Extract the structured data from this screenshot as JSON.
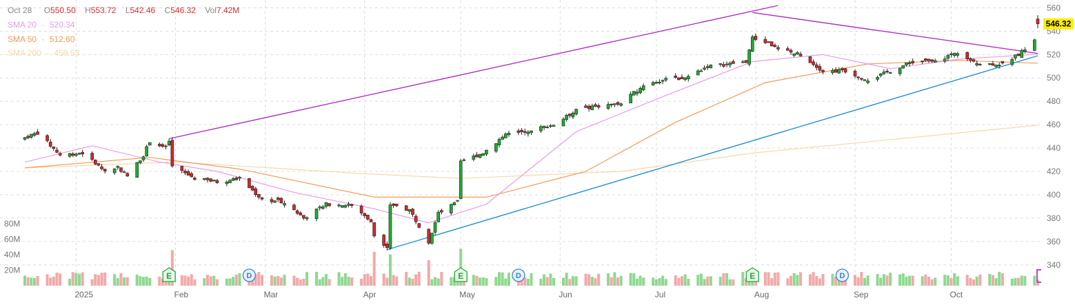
{
  "ohlc_header": {
    "date": "Oct 28",
    "open_label": "O",
    "open": "550.50",
    "high_label": "H",
    "high": "553.72",
    "low_label": "L",
    "low": "542.46",
    "close_label": "C",
    "close": "546.32",
    "vol_label": "Vol",
    "vol": "7.42M"
  },
  "sma_legend": [
    {
      "label": "SMA 20",
      "sep": "·",
      "value": "520.34",
      "color": "#e79be8"
    },
    {
      "label": "SMA 50",
      "sep": "·",
      "value": "512.60",
      "color": "#f29a55"
    },
    {
      "label": "SMA 200",
      "sep": "·",
      "value": "459.53",
      "color": "#f5d9a8"
    }
  ],
  "last_price_tag": "546.32",
  "colors": {
    "up": "#1fab2f",
    "down": "#d6262a",
    "vol_up": "#8fd98f",
    "vol_down": "#f3a9a9",
    "trend_upper": "#b02fc4",
    "trend_lower": "#1e8fd4",
    "grid": "#dcdcdc",
    "axis_text": "#777777",
    "tag_bg": "#ffee00"
  },
  "chart_data": {
    "type": "candlestick",
    "x_axis_labels": [
      "2025",
      "Feb",
      "Mar",
      "Apr",
      "May",
      "Jun",
      "Jul",
      "Aug",
      "Sep",
      "Oct"
    ],
    "y_ticks": [
      340,
      360,
      380,
      400,
      420,
      440,
      460,
      480,
      500,
      520,
      540,
      560
    ],
    "ylim": [
      334,
      562
    ],
    "volume_ticks": [
      "20M",
      "40M",
      "60M",
      "80M"
    ],
    "volume_max_M": 85,
    "anchors": [
      {
        "d": "2024-12-16",
        "c": 449
      },
      {
        "d": "2024-12-20",
        "c": 453
      },
      {
        "d": "2024-12-27",
        "c": 434
      },
      {
        "d": "2025-01-03",
        "c": 436
      },
      {
        "d": "2025-01-10",
        "c": 420
      },
      {
        "d": "2025-01-14",
        "c": 424
      },
      {
        "d": "2025-01-17",
        "c": 416
      },
      {
        "d": "2025-01-22",
        "c": 434
      },
      {
        "d": "2025-01-24",
        "c": 446
      },
      {
        "d": "2025-01-29",
        "c": 440
      },
      {
        "d": "2025-01-30",
        "c": 446
      },
      {
        "d": "2025-01-31",
        "c": 424
      },
      {
        "d": "2025-02-07",
        "c": 414
      },
      {
        "d": "2025-02-14",
        "c": 411
      },
      {
        "d": "2025-02-21",
        "c": 414
      },
      {
        "d": "2025-02-28",
        "c": 396
      },
      {
        "d": "2025-03-07",
        "c": 394
      },
      {
        "d": "2025-03-13",
        "c": 380
      },
      {
        "d": "2025-03-20",
        "c": 392
      },
      {
        "d": "2025-03-27",
        "c": 392
      },
      {
        "d": "2025-04-03",
        "c": 378
      },
      {
        "d": "2025-04-04",
        "c": 364
      },
      {
        "d": "2025-04-08",
        "c": 356
      },
      {
        "d": "2025-04-09",
        "c": 392
      },
      {
        "d": "2025-04-15",
        "c": 387
      },
      {
        "d": "2025-04-21",
        "c": 360
      },
      {
        "d": "2025-04-24",
        "c": 384
      },
      {
        "d": "2025-04-30",
        "c": 394
      },
      {
        "d": "2025-05-01",
        "c": 428
      },
      {
        "d": "2025-05-08",
        "c": 436
      },
      {
        "d": "2025-05-15",
        "c": 452
      },
      {
        "d": "2025-05-22",
        "c": 455
      },
      {
        "d": "2025-05-30",
        "c": 460
      },
      {
        "d": "2025-06-06",
        "c": 472
      },
      {
        "d": "2025-06-13",
        "c": 476
      },
      {
        "d": "2025-06-20",
        "c": 478
      },
      {
        "d": "2025-06-27",
        "c": 494
      },
      {
        "d": "2025-07-03",
        "c": 498
      },
      {
        "d": "2025-07-10",
        "c": 500
      },
      {
        "d": "2025-07-17",
        "c": 510
      },
      {
        "d": "2025-07-24",
        "c": 512
      },
      {
        "d": "2025-07-29",
        "c": 514
      },
      {
        "d": "2025-07-31",
        "c": 534
      },
      {
        "d": "2025-08-05",
        "c": 530
      },
      {
        "d": "2025-08-08",
        "c": 524
      },
      {
        "d": "2025-08-15",
        "c": 520
      },
      {
        "d": "2025-08-22",
        "c": 506
      },
      {
        "d": "2025-08-29",
        "c": 506
      },
      {
        "d": "2025-09-05",
        "c": 498
      },
      {
        "d": "2025-09-12",
        "c": 506
      },
      {
        "d": "2025-09-19",
        "c": 514
      },
      {
        "d": "2025-09-26",
        "c": 514
      },
      {
        "d": "2025-10-03",
        "c": 522
      },
      {
        "d": "2025-10-10",
        "c": 512
      },
      {
        "d": "2025-10-17",
        "c": 512
      },
      {
        "d": "2025-10-22",
        "c": 520
      },
      {
        "d": "2025-10-27",
        "c": 532
      },
      {
        "d": "2025-10-28",
        "c": 546.32
      }
    ],
    "last_candle": {
      "d": "2025-10-28",
      "o": 550.5,
      "h": 553.72,
      "l": 542.46,
      "c": 546.32,
      "vol_M": 7.42
    },
    "sma20": [
      {
        "d": "2024-12-16",
        "v": 428
      },
      {
        "d": "2025-01-06",
        "v": 442
      },
      {
        "d": "2025-01-27",
        "v": 428
      },
      {
        "d": "2025-02-14",
        "v": 420
      },
      {
        "d": "2025-03-10",
        "v": 402
      },
      {
        "d": "2025-04-04",
        "v": 388
      },
      {
        "d": "2025-04-21",
        "v": 376
      },
      {
        "d": "2025-05-09",
        "v": 392
      },
      {
        "d": "2025-06-06",
        "v": 454
      },
      {
        "d": "2025-07-03",
        "v": 484
      },
      {
        "d": "2025-07-31",
        "v": 514
      },
      {
        "d": "2025-08-22",
        "v": 520
      },
      {
        "d": "2025-09-12",
        "v": 508
      },
      {
        "d": "2025-10-03",
        "v": 516
      },
      {
        "d": "2025-10-28",
        "v": 520.34
      }
    ],
    "sma50": [
      {
        "d": "2024-12-16",
        "v": 423
      },
      {
        "d": "2025-01-24",
        "v": 432
      },
      {
        "d": "2025-02-21",
        "v": 422
      },
      {
        "d": "2025-04-04",
        "v": 398
      },
      {
        "d": "2025-05-09",
        "v": 398
      },
      {
        "d": "2025-06-09",
        "v": 420
      },
      {
        "d": "2025-07-07",
        "v": 462
      },
      {
        "d": "2025-08-04",
        "v": 496
      },
      {
        "d": "2025-09-05",
        "v": 512
      },
      {
        "d": "2025-10-03",
        "v": 515
      },
      {
        "d": "2025-10-28",
        "v": 512.6
      }
    ],
    "sma200": [
      {
        "d": "2024-12-16",
        "v": 423
      },
      {
        "d": "2025-02-01",
        "v": 428
      },
      {
        "d": "2025-04-01",
        "v": 418
      },
      {
        "d": "2025-05-01",
        "v": 414
      },
      {
        "d": "2025-06-20",
        "v": 420
      },
      {
        "d": "2025-08-01",
        "v": 436
      },
      {
        "d": "2025-09-15",
        "v": 448
      },
      {
        "d": "2025-10-28",
        "v": 459.53
      }
    ],
    "trendlines": [
      {
        "name": "upper",
        "color": "#b02fc4",
        "from": {
          "d": "2025-01-30",
          "v": 448
        },
        "to": {
          "d": "2025-08-08",
          "v": 562
        }
      },
      {
        "name": "upper-descending",
        "color": "#b02fc4",
        "from": {
          "d": "2025-07-31",
          "v": 556
        },
        "to": {
          "d": "2025-10-28",
          "v": 521
        }
      },
      {
        "name": "lower",
        "color": "#1e8fd4",
        "from": {
          "d": "2025-04-08",
          "v": 353
        },
        "to": {
          "d": "2025-10-28",
          "v": 519
        }
      }
    ],
    "events": [
      {
        "type": "E",
        "d": "2025-01-30"
      },
      {
        "type": "D",
        "d": "2025-02-24"
      },
      {
        "type": "E",
        "d": "2025-05-01"
      },
      {
        "type": "D",
        "d": "2025-05-19"
      },
      {
        "type": "E",
        "d": "2025-07-31"
      },
      {
        "type": "D",
        "d": "2025-08-28"
      }
    ]
  }
}
